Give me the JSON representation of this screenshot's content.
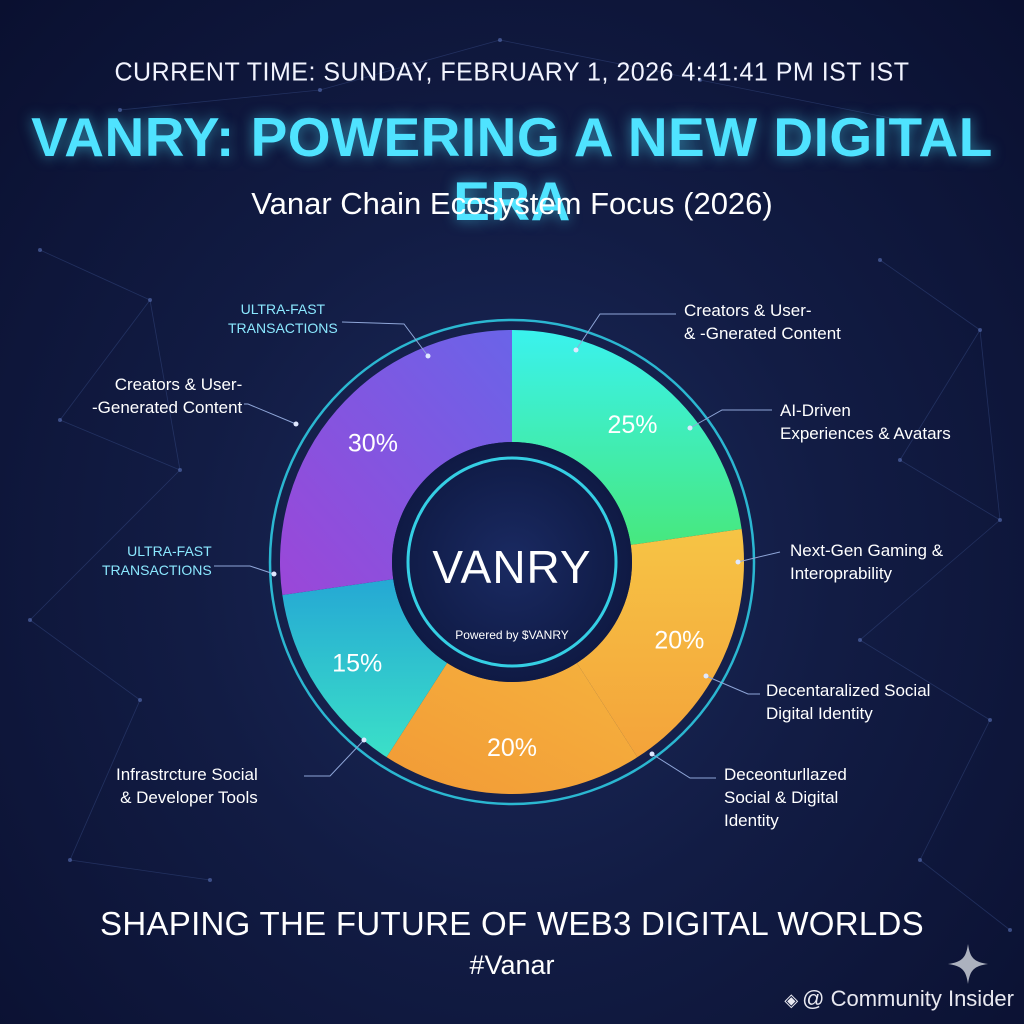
{
  "header": {
    "current_time": "CURRENT TIME: SUNDAY, FEBRUARY 1, 2026 4:41:41 PM IST IST",
    "title": "VANRY: POWERING A NEW DIGITAL ERA",
    "subtitle": "Vanar Chain Ecosystem Focus (2026)"
  },
  "chart_data": {
    "type": "pie",
    "title": "VANRY: POWERING A NEW DIGITAL ERA",
    "subtitle": "Vanar Chain Ecosystem Focus (2026)",
    "center_label": "VANRY",
    "center_sublabel": "Powered by $VANRY",
    "slices": [
      {
        "value": 25,
        "label": "25%",
        "color": "#3ff0c8"
      },
      {
        "value": 20,
        "label": "20%",
        "color": "#f4b040"
      },
      {
        "value": 20,
        "label": "20%",
        "color": "#f4a838"
      },
      {
        "value": 15,
        "label": "15%",
        "color": "#2ec6d8"
      },
      {
        "value": 30,
        "label": "30%",
        "color": "#8a4fe0"
      }
    ],
    "annotations": [
      {
        "text": "Creators & User-\n& -Gnerated Content",
        "style": "white"
      },
      {
        "text": "AI-Driven\nExperiences & Avatars",
        "style": "white"
      },
      {
        "text": "Next-Gen Gaming &\nInteroprability",
        "style": "white"
      },
      {
        "text": "Decentaralized Social\nDigital Identity",
        "style": "white"
      },
      {
        "text": "Deceonturllazed\nSocial & Digital\nIdentity",
        "style": "white"
      },
      {
        "text": "Infrastrcture Social\n& Developer Tools",
        "style": "white"
      },
      {
        "text": "ULTRA-FAST\nTRANSACTIONS",
        "style": "cyan"
      },
      {
        "text": "Creators & User-\n-Generated Content",
        "style": "white"
      },
      {
        "text": "ULTRA-FAST\nTRANSACTIONS",
        "style": "cyan"
      }
    ]
  },
  "footer": {
    "tagline": "SHAPING THE FUTURE OF WEB3 DIGITAL WORLDS",
    "hashtag": "#Vanar",
    "watermark": "@ Community Insider"
  }
}
